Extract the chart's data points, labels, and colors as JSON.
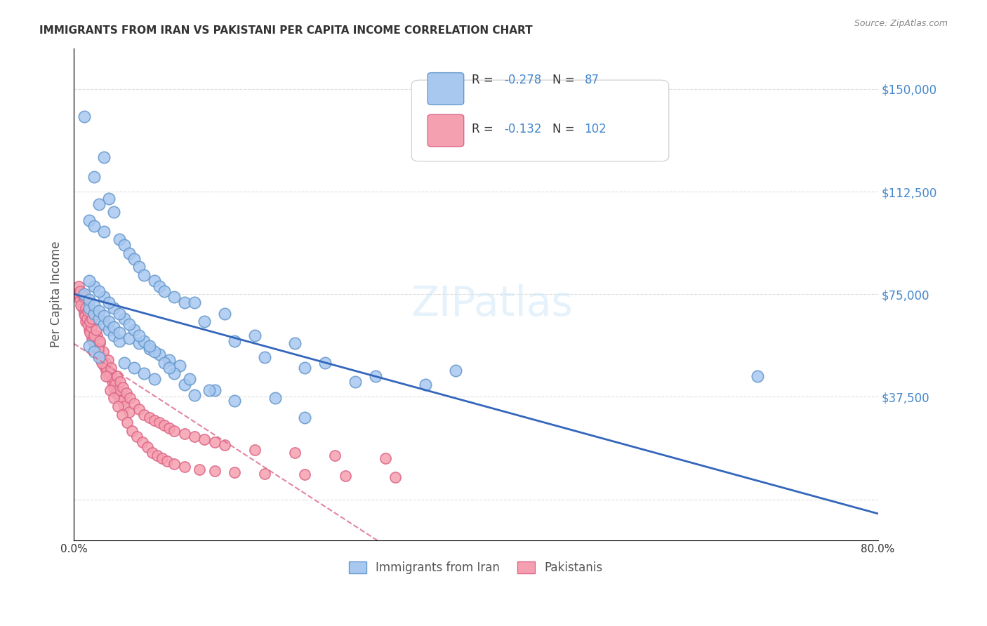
{
  "title": "IMMIGRANTS FROM IRAN VS PAKISTANI PER CAPITA INCOME CORRELATION CHART",
  "source": "Source: ZipAtlas.com",
  "xlabel": "",
  "ylabel": "Per Capita Income",
  "xlim": [
    0.0,
    0.8
  ],
  "ylim": [
    -5000,
    160000
  ],
  "yticks": [
    0,
    37500,
    75000,
    112500,
    150000
  ],
  "ytick_labels": [
    "",
    "$37,500",
    "$75,000",
    "$112,500",
    "$150,000"
  ],
  "xticks": [
    0.0,
    0.1,
    0.2,
    0.3,
    0.4,
    0.5,
    0.6,
    0.7,
    0.8
  ],
  "xtick_labels": [
    "0.0%",
    "",
    "",
    "",
    "",
    "",
    "",
    "",
    "80.0%"
  ],
  "iran_color": "#a8c8f0",
  "iran_edge_color": "#6699cc",
  "pak_color": "#f5a0b0",
  "pak_edge_color": "#dd6688",
  "iran_R": -0.278,
  "iran_N": 87,
  "pak_R": -0.132,
  "pak_N": 102,
  "watermark": "ZIPatlas",
  "blue_text_color": "#4488cc",
  "axis_color": "#cccccc",
  "grid_color": "#dddddd",
  "iran_scatter_x": [
    0.01,
    0.03,
    0.02,
    0.035,
    0.025,
    0.04,
    0.015,
    0.02,
    0.03,
    0.045,
    0.05,
    0.055,
    0.06,
    0.065,
    0.07,
    0.08,
    0.085,
    0.09,
    0.1,
    0.11,
    0.015,
    0.02,
    0.025,
    0.03,
    0.035,
    0.04,
    0.045,
    0.015,
    0.02,
    0.025,
    0.05,
    0.06,
    0.07,
    0.08,
    0.12,
    0.15,
    0.18,
    0.22,
    0.25,
    0.3,
    0.35,
    0.68,
    0.01,
    0.015,
    0.02,
    0.025,
    0.03,
    0.035,
    0.04,
    0.045,
    0.055,
    0.065,
    0.075,
    0.085,
    0.095,
    0.105,
    0.13,
    0.16,
    0.19,
    0.23,
    0.02,
    0.03,
    0.04,
    0.05,
    0.06,
    0.07,
    0.08,
    0.09,
    0.1,
    0.11,
    0.12,
    0.14,
    0.2,
    0.28,
    0.015,
    0.025,
    0.035,
    0.045,
    0.055,
    0.065,
    0.075,
    0.095,
    0.115,
    0.135,
    0.16,
    0.23,
    0.38
  ],
  "iran_scatter_y": [
    140000,
    125000,
    118000,
    110000,
    108000,
    105000,
    102000,
    100000,
    98000,
    95000,
    93000,
    90000,
    88000,
    85000,
    82000,
    80000,
    78000,
    76000,
    74000,
    72000,
    70000,
    68000,
    66000,
    64000,
    62000,
    60000,
    58000,
    56000,
    54000,
    52000,
    50000,
    48000,
    46000,
    44000,
    72000,
    68000,
    60000,
    57000,
    50000,
    45000,
    42000,
    45000,
    75000,
    73000,
    71000,
    69000,
    67000,
    65000,
    63000,
    61000,
    59000,
    57000,
    55000,
    53000,
    51000,
    49000,
    65000,
    58000,
    52000,
    48000,
    78000,
    74000,
    70000,
    66000,
    62000,
    58000,
    54000,
    50000,
    46000,
    42000,
    38000,
    40000,
    37000,
    43000,
    80000,
    76000,
    72000,
    68000,
    64000,
    60000,
    56000,
    48000,
    44000,
    40000,
    36000,
    30000,
    47000
  ],
  "pak_scatter_x": [
    0.005,
    0.008,
    0.01,
    0.012,
    0.015,
    0.018,
    0.02,
    0.022,
    0.025,
    0.028,
    0.03,
    0.032,
    0.035,
    0.038,
    0.04,
    0.042,
    0.045,
    0.048,
    0.05,
    0.055,
    0.006,
    0.009,
    0.011,
    0.014,
    0.016,
    0.019,
    0.021,
    0.024,
    0.027,
    0.031,
    0.033,
    0.036,
    0.039,
    0.041,
    0.044,
    0.007,
    0.013,
    0.017,
    0.023,
    0.026,
    0.029,
    0.034,
    0.037,
    0.043,
    0.046,
    0.049,
    0.052,
    0.056,
    0.06,
    0.065,
    0.07,
    0.075,
    0.08,
    0.085,
    0.09,
    0.095,
    0.1,
    0.11,
    0.12,
    0.13,
    0.14,
    0.15,
    0.18,
    0.22,
    0.26,
    0.31,
    0.005,
    0.008,
    0.012,
    0.016,
    0.02,
    0.024,
    0.028,
    0.032,
    0.036,
    0.04,
    0.044,
    0.048,
    0.053,
    0.058,
    0.063,
    0.068,
    0.073,
    0.078,
    0.083,
    0.088,
    0.093,
    0.1,
    0.11,
    0.125,
    0.14,
    0.16,
    0.19,
    0.23,
    0.27,
    0.32,
    0.006,
    0.01,
    0.014,
    0.018,
    0.022,
    0.026
  ],
  "pak_scatter_y": [
    75000,
    72000,
    68000,
    65000,
    62000,
    59000,
    57000,
    55000,
    53000,
    51000,
    49000,
    47000,
    45000,
    43000,
    41000,
    39000,
    37500,
    36000,
    34000,
    32000,
    73000,
    70000,
    67000,
    64000,
    61000,
    58000,
    56000,
    54000,
    52000,
    50000,
    48000,
    46000,
    44000,
    42000,
    40000,
    71000,
    66000,
    63000,
    60000,
    57000,
    54000,
    51000,
    48000,
    45000,
    43000,
    41000,
    39000,
    37000,
    35000,
    33000,
    31000,
    30000,
    29000,
    28000,
    27000,
    26000,
    25000,
    24000,
    23000,
    22000,
    21000,
    20000,
    18000,
    17000,
    16000,
    15000,
    78000,
    75000,
    70000,
    65000,
    60000,
    55000,
    50000,
    45000,
    40000,
    37000,
    34000,
    31000,
    28000,
    25000,
    23000,
    21000,
    19000,
    17000,
    16000,
    15000,
    14000,
    13000,
    12000,
    11000,
    10500,
    10000,
    9500,
    9000,
    8500,
    8000,
    76000,
    74000,
    69000,
    66000,
    62000,
    58000
  ]
}
